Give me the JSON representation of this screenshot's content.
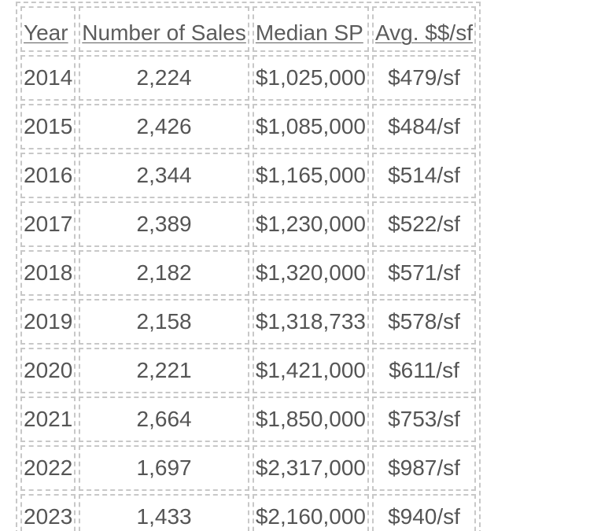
{
  "table": {
    "headers": [
      "Year",
      "Number of Sales",
      "Median SP",
      "Avg. $$/sf"
    ],
    "rows": [
      [
        "2014",
        "2,224",
        "$1,025,000",
        "$479/sf"
      ],
      [
        "2015",
        "2,426",
        "$1,085,000",
        "$484/sf"
      ],
      [
        "2016",
        "2,344",
        "$1,165,000",
        "$514/sf"
      ],
      [
        "2017",
        "2,389",
        "$1,230,000",
        "$522/sf"
      ],
      [
        "2018",
        "2,182",
        "$1,320,000",
        "$571/sf"
      ],
      [
        "2019",
        "2,158",
        "$1,318,733",
        "$578/sf"
      ],
      [
        "2020",
        "2,221",
        "$1,421,000",
        "$611/sf"
      ],
      [
        "2021",
        "2,664",
        "$1,850,000",
        "$753/sf"
      ],
      [
        "2022",
        "1,697",
        "$2,317,000",
        "$987/sf"
      ],
      [
        "2023",
        "1,433",
        "$2,160,000",
        "$940/sf"
      ]
    ]
  }
}
